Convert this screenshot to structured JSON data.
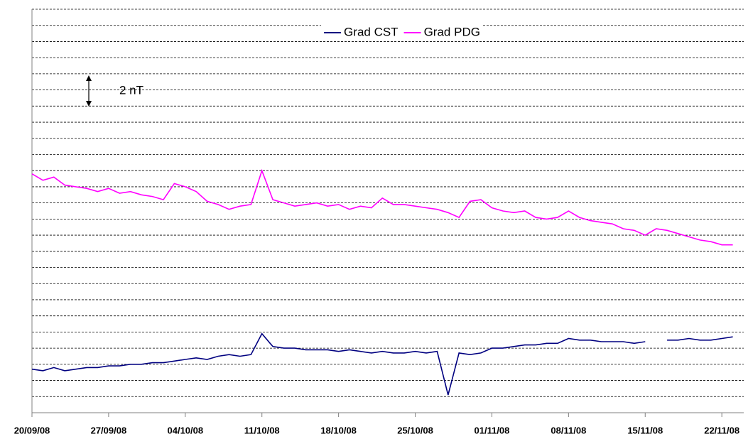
{
  "chart_data": {
    "type": "line",
    "annotation": "2 nT",
    "x": [
      "2008-09-20",
      "2008-09-21",
      "2008-09-22",
      "2008-09-23",
      "2008-09-24",
      "2008-09-25",
      "2008-09-26",
      "2008-09-27",
      "2008-09-28",
      "2008-09-29",
      "2008-09-30",
      "2008-10-01",
      "2008-10-02",
      "2008-10-03",
      "2008-10-04",
      "2008-10-05",
      "2008-10-06",
      "2008-10-07",
      "2008-10-08",
      "2008-10-09",
      "2008-10-10",
      "2008-10-11",
      "2008-10-12",
      "2008-10-13",
      "2008-10-14",
      "2008-10-15",
      "2008-10-16",
      "2008-10-17",
      "2008-10-18",
      "2008-10-19",
      "2008-10-20",
      "2008-10-21",
      "2008-10-22",
      "2008-10-23",
      "2008-10-24",
      "2008-10-25",
      "2008-10-26",
      "2008-10-27",
      "2008-10-28",
      "2008-10-29",
      "2008-10-30",
      "2008-10-31",
      "2008-11-01",
      "2008-11-02",
      "2008-11-03",
      "2008-11-04",
      "2008-11-05",
      "2008-11-06",
      "2008-11-07",
      "2008-11-08",
      "2008-11-09",
      "2008-11-10",
      "2008-11-11",
      "2008-11-12",
      "2008-11-13",
      "2008-11-14",
      "2008-11-15",
      "2008-11-16",
      "2008-11-17",
      "2008-11-18",
      "2008-11-19",
      "2008-11-20",
      "2008-11-21",
      "2008-11-22",
      "2008-11-23"
    ],
    "series": [
      {
        "name": "Grad CST",
        "color": "#000080",
        "values": [
          2.7,
          2.6,
          2.8,
          2.6,
          2.7,
          2.8,
          2.8,
          2.9,
          2.9,
          3.0,
          3.0,
          3.1,
          3.1,
          3.2,
          3.3,
          3.4,
          3.3,
          3.5,
          3.6,
          3.5,
          3.6,
          4.9,
          4.1,
          4.0,
          4.0,
          3.9,
          3.9,
          3.9,
          3.8,
          3.9,
          3.8,
          3.7,
          3.8,
          3.7,
          3.7,
          3.8,
          3.7,
          3.8,
          1.1,
          3.7,
          3.6,
          3.7,
          4.0,
          4.0,
          4.1,
          4.2,
          4.2,
          4.3,
          4.3,
          4.6,
          4.5,
          4.5,
          4.4,
          4.4,
          4.4,
          4.3,
          4.4,
          null,
          4.5,
          4.5,
          4.6,
          4.5,
          4.5,
          4.6,
          4.7
        ]
      },
      {
        "name": "Grad PDG",
        "color": "#ff00ff",
        "values": [
          14.8,
          14.4,
          14.6,
          14.1,
          14.0,
          13.9,
          13.7,
          13.9,
          13.6,
          13.7,
          13.5,
          13.4,
          13.2,
          14.2,
          14.0,
          13.7,
          13.1,
          12.9,
          12.6,
          12.8,
          12.9,
          15.0,
          13.2,
          13.0,
          12.8,
          12.9,
          13.0,
          12.8,
          12.9,
          12.6,
          12.8,
          12.7,
          13.3,
          12.9,
          12.9,
          12.8,
          12.7,
          12.6,
          12.4,
          12.1,
          13.1,
          13.2,
          12.7,
          12.5,
          12.4,
          12.5,
          12.1,
          12.0,
          12.1,
          12.5,
          12.1,
          11.9,
          11.8,
          11.7,
          11.4,
          11.3,
          11.0,
          11.4,
          11.3,
          11.1,
          10.9,
          10.7,
          10.6,
          10.4,
          10.4
        ]
      }
    ],
    "xlim": [
      "2008-09-20",
      "2008-11-24"
    ],
    "xticks": [
      {
        "value": "2008-09-20",
        "label": "20/09/08"
      },
      {
        "value": "2008-09-27",
        "label": "27/09/08"
      },
      {
        "value": "2008-10-04",
        "label": "04/10/08"
      },
      {
        "value": "2008-10-11",
        "label": "11/10/08"
      },
      {
        "value": "2008-10-18",
        "label": "18/10/08"
      },
      {
        "value": "2008-10-25",
        "label": "25/10/08"
      },
      {
        "value": "2008-11-01",
        "label": "01/11/08"
      },
      {
        "value": "2008-11-08",
        "label": "08/11/08"
      },
      {
        "value": "2008-11-15",
        "label": "15/11/08"
      },
      {
        "value": "2008-11-22",
        "label": "22/11/08"
      }
    ],
    "ylim": [
      0,
      25
    ],
    "yticks": [
      0,
      1,
      2,
      3,
      4,
      5,
      6,
      7,
      8,
      9,
      10,
      11,
      12,
      13,
      14,
      15,
      16,
      17,
      18,
      19,
      20,
      21,
      22,
      23,
      24,
      25
    ],
    "ytick_labels": false,
    "grid": true,
    "legend": "top"
  }
}
